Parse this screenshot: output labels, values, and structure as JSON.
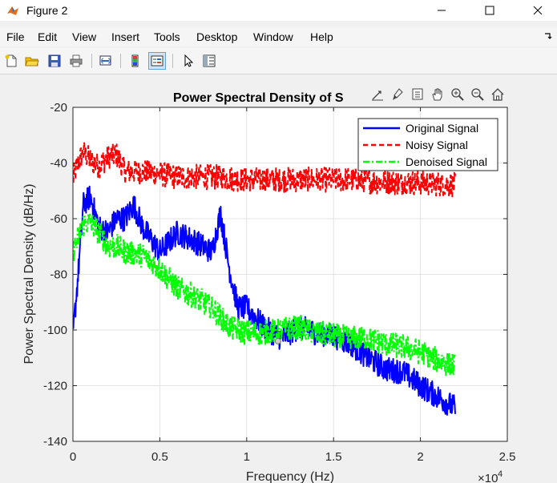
{
  "window": {
    "title": "Figure 2"
  },
  "menu": [
    "File",
    "Edit",
    "View",
    "Insert",
    "Tools",
    "Desktop",
    "Window",
    "Help"
  ],
  "toolbar": [
    {
      "name": "new-figure-icon"
    },
    {
      "name": "open-file-icon"
    },
    {
      "name": "save-icon"
    },
    {
      "name": "print-icon"
    },
    {
      "name": "link-plot-icon"
    },
    {
      "name": "insert-colorbar-icon"
    },
    {
      "name": "insert-legend-icon"
    },
    {
      "name": "edit-plot-pointer-icon"
    },
    {
      "name": "property-inspector-icon"
    }
  ],
  "axes_toolbar": [
    "export-icon",
    "brush-icon",
    "data-tips-icon",
    "pan-icon",
    "zoom-in-icon",
    "zoom-out-icon",
    "home-icon"
  ],
  "colors": {
    "original": "#0000ff",
    "noisy": "#ff0000",
    "denoised": "#00ff00"
  },
  "chart_data": {
    "type": "line",
    "title": "Power Spectral Density of S",
    "xlabel": "Frequency (Hz)",
    "ylabel": "Power Spectral Density (dB/Hz)",
    "xlim": [
      0,
      25000
    ],
    "ylim": [
      -140,
      -20
    ],
    "x_tick_labels": [
      "0",
      "0.5",
      "1",
      "1.5",
      "2",
      "2.5"
    ],
    "y_tick_labels": [
      "-140",
      "-120",
      "-100",
      "-80",
      "-60",
      "-40",
      "-20"
    ],
    "x_exponent_base": "×10",
    "x_exponent_power": "4",
    "grid": true,
    "legend_placement": "top-right",
    "series": [
      {
        "name": "Original Signal",
        "style": "solid",
        "x": [
          0,
          300,
          600,
          1000,
          1500,
          2000,
          2500,
          3000,
          3500,
          4000,
          5000,
          6000,
          7000,
          8000,
          8500,
          9000,
          9500,
          10000,
          11000,
          12000,
          13000,
          14000,
          15000,
          16000,
          17000,
          18000,
          19000,
          20000,
          21000,
          22000
        ],
        "values": [
          -102,
          -80,
          -55,
          -52,
          -63,
          -65,
          -60,
          -60,
          -55,
          -63,
          -72,
          -65,
          -68,
          -72,
          -58,
          -78,
          -92,
          -92,
          -99,
          -103,
          -99,
          -101,
          -102,
          -105,
          -110,
          -114,
          -115,
          -120,
          -124,
          -128
        ]
      },
      {
        "name": "Noisy Signal",
        "style": "dashed",
        "x": [
          0,
          300,
          600,
          1000,
          1500,
          2000,
          2500,
          3000,
          4000,
          5000,
          6000,
          8000,
          10000,
          12000,
          14000,
          16000,
          18000,
          20000,
          22000
        ],
        "values": [
          -46,
          -40,
          -36,
          -39,
          -41,
          -38,
          -37,
          -43,
          -43,
          -44,
          -45,
          -45,
          -46,
          -46,
          -46,
          -46,
          -47,
          -47,
          -48
        ]
      },
      {
        "name": "Denoised Signal",
        "style": "dash-dot",
        "x": [
          0,
          300,
          600,
          1000,
          1500,
          2000,
          2500,
          3000,
          4000,
          5000,
          6000,
          7000,
          8000,
          9000,
          10000,
          11000,
          12000,
          13000,
          14000,
          15000,
          16000,
          17000,
          18000,
          19000,
          20000,
          21000,
          22000
        ],
        "values": [
          -72,
          -67,
          -62,
          -61,
          -65,
          -70,
          -70,
          -72,
          -73,
          -78,
          -85,
          -88,
          -92,
          -99,
          -101,
          -101,
          -100,
          -99,
          -101,
          -102,
          -103,
          -103,
          -105,
          -106,
          -108,
          -111,
          -113
        ]
      }
    ],
    "annotation_point": {
      "x": 11800,
      "y": -104
    }
  }
}
